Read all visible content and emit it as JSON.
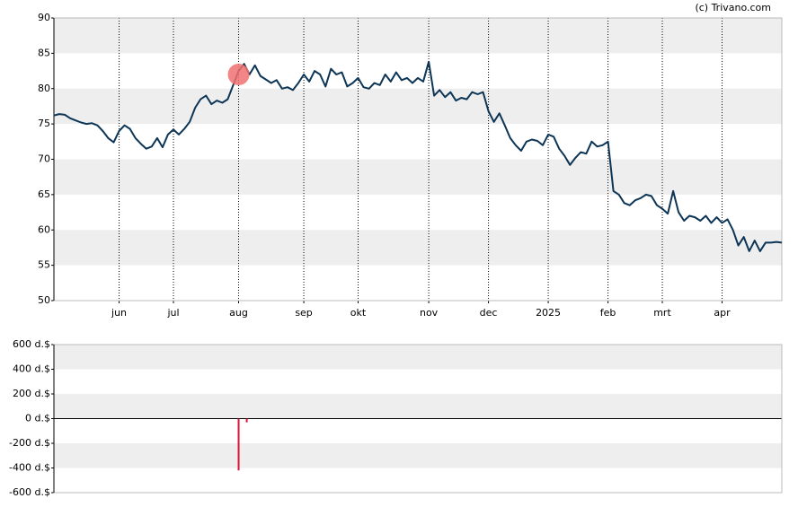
{
  "chart_data": [
    {
      "type": "line",
      "credit": "(c) Trivano.com",
      "color": "#0d3556",
      "grid": "bands",
      "xlim": [
        0,
        134
      ],
      "xticks": [
        {
          "value": 12,
          "label": "jun"
        },
        {
          "value": 22,
          "label": "jul"
        },
        {
          "value": 34,
          "label": "aug"
        },
        {
          "value": 46,
          "label": "sep"
        },
        {
          "value": 56,
          "label": "okt"
        },
        {
          "value": 69,
          "label": "nov"
        },
        {
          "value": 80,
          "label": "dec"
        },
        {
          "value": 91,
          "label": "2025"
        },
        {
          "value": 102,
          "label": "feb"
        },
        {
          "value": 112,
          "label": "mrt"
        },
        {
          "value": 123,
          "label": "apr"
        }
      ],
      "ylim": [
        50,
        90
      ],
      "yticks": [
        50,
        55,
        60,
        65,
        70,
        75,
        80,
        85,
        90
      ],
      "values": [
        76.2,
        76.4,
        76.3,
        75.8,
        75.5,
        75.2,
        75.0,
        75.1,
        74.8,
        74.0,
        73.0,
        72.4,
        74.0,
        74.8,
        74.3,
        73.0,
        72.2,
        71.5,
        71.8,
        73.0,
        71.7,
        73.5,
        74.2,
        73.5,
        74.3,
        75.3,
        77.3,
        78.5,
        79.0,
        77.8,
        78.3,
        78.0,
        78.5,
        80.5,
        82.5,
        83.5,
        82.0,
        83.3,
        81.8,
        81.3,
        80.8,
        81.2,
        80.0,
        80.2,
        79.8,
        80.8,
        82.0,
        81.0,
        82.5,
        82.0,
        80.3,
        82.8,
        82.0,
        82.3,
        80.3,
        80.8,
        81.5,
        80.2,
        80.0,
        80.8,
        80.5,
        82.0,
        81.0,
        82.3,
        81.2,
        81.5,
        80.8,
        81.5,
        81.0,
        83.8,
        79.0,
        79.8,
        78.8,
        79.5,
        78.3,
        78.7,
        78.5,
        79.5,
        79.2,
        79.5,
        76.8,
        75.3,
        76.5,
        74.8,
        73.0,
        72.0,
        71.2,
        72.5,
        72.8,
        72.6,
        72.0,
        73.5,
        73.2,
        71.5,
        70.5,
        69.2,
        70.2,
        71.0,
        70.8,
        72.5,
        71.8,
        72.0,
        72.5,
        65.5,
        65.0,
        63.8,
        63.5,
        64.2,
        64.5,
        65.0,
        64.8,
        63.5,
        63.0,
        62.3,
        65.5,
        62.5,
        61.3,
        62.0,
        61.8,
        61.3,
        62.0,
        61.0,
        61.8,
        61.0,
        61.5,
        60.0,
        57.8,
        59.0,
        57.0,
        58.5,
        57.0,
        58.2,
        58.2,
        58.3,
        58.2
      ],
      "marker": {
        "x": 34,
        "y": 82,
        "color": "#f07070"
      }
    },
    {
      "type": "bar",
      "color": "#dc143c",
      "grid": "bands",
      "xlim": [
        0,
        134
      ],
      "x": [
        34,
        35.5
      ],
      "values": [
        -420,
        -30
      ],
      "ylim": [
        -600,
        600
      ],
      "yticks": [
        {
          "value": -600,
          "label": "-600 d.$"
        },
        {
          "value": -400,
          "label": "-400 d.$"
        },
        {
          "value": -200,
          "label": "-200 d.$"
        },
        {
          "value": 0,
          "label": "0 d.$"
        },
        {
          "value": 200,
          "label": "200 d.$"
        },
        {
          "value": 400,
          "label": "400 d.$"
        },
        {
          "value": 600,
          "label": "600 d.$"
        }
      ]
    }
  ]
}
